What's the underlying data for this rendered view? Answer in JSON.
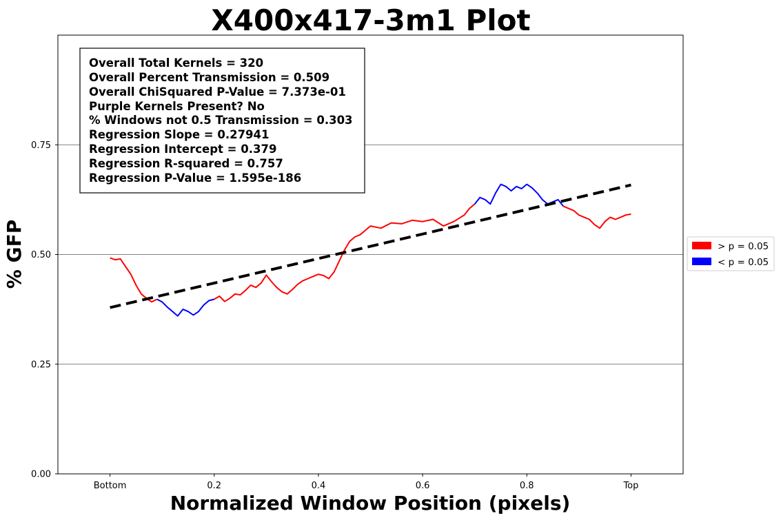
{
  "chart_data": {
    "type": "line",
    "title": "X400x417-3m1 Plot",
    "xlabel": "Normalized Window Position (pixels)",
    "ylabel": "% GFP",
    "xlim": [
      -0.1,
      1.1
    ],
    "ylim": [
      0,
      1.0
    ],
    "x_ticks": [
      {
        "value": 0.0,
        "label": "Bottom"
      },
      {
        "value": 0.2,
        "label": "0.2"
      },
      {
        "value": 0.4,
        "label": "0.4"
      },
      {
        "value": 0.6,
        "label": "0.6"
      },
      {
        "value": 0.8,
        "label": "0.8"
      },
      {
        "value": 1.0,
        "label": "Top"
      }
    ],
    "y_ticks": [
      {
        "value": 0.0,
        "label": "0.00"
      },
      {
        "value": 0.25,
        "label": "0.25"
      },
      {
        "value": 0.5,
        "label": "0.50"
      },
      {
        "value": 0.75,
        "label": "0.75"
      }
    ],
    "grid": "horizontal",
    "legend_placement": "outside-right",
    "legend": [
      {
        "label": "> p = 0.05",
        "color": "#ff0000"
      },
      {
        "label": "< p = 0.05",
        "color": "#0000ff"
      }
    ],
    "series": [
      {
        "color": "#ff0000",
        "points": [
          [
            0.0,
            0.492
          ],
          [
            0.01,
            0.488
          ],
          [
            0.02,
            0.49
          ],
          [
            0.03,
            0.472
          ],
          [
            0.04,
            0.455
          ],
          [
            0.05,
            0.43
          ],
          [
            0.06,
            0.41
          ],
          [
            0.07,
            0.4
          ],
          [
            0.08,
            0.392
          ],
          [
            0.09,
            0.398
          ]
        ]
      },
      {
        "color": "#0000ff",
        "points": [
          [
            0.09,
            0.398
          ],
          [
            0.1,
            0.392
          ],
          [
            0.11,
            0.38
          ],
          [
            0.12,
            0.37
          ],
          [
            0.13,
            0.36
          ],
          [
            0.14,
            0.375
          ],
          [
            0.15,
            0.37
          ],
          [
            0.16,
            0.362
          ],
          [
            0.17,
            0.37
          ],
          [
            0.18,
            0.385
          ],
          [
            0.19,
            0.395
          ],
          [
            0.2,
            0.398
          ]
        ]
      },
      {
        "color": "#ff0000",
        "points": [
          [
            0.2,
            0.398
          ],
          [
            0.21,
            0.405
          ],
          [
            0.22,
            0.393
          ],
          [
            0.23,
            0.4
          ],
          [
            0.24,
            0.41
          ],
          [
            0.25,
            0.408
          ],
          [
            0.26,
            0.418
          ],
          [
            0.27,
            0.43
          ],
          [
            0.28,
            0.425
          ],
          [
            0.29,
            0.435
          ],
          [
            0.3,
            0.453
          ],
          [
            0.31,
            0.438
          ],
          [
            0.32,
            0.425
          ],
          [
            0.33,
            0.415
          ],
          [
            0.34,
            0.41
          ],
          [
            0.35,
            0.42
          ],
          [
            0.36,
            0.432
          ],
          [
            0.37,
            0.44
          ],
          [
            0.38,
            0.445
          ],
          [
            0.39,
            0.45
          ],
          [
            0.4,
            0.455
          ],
          [
            0.41,
            0.452
          ],
          [
            0.42,
            0.445
          ],
          [
            0.43,
            0.46
          ],
          [
            0.44,
            0.485
          ],
          [
            0.45,
            0.51
          ],
          [
            0.46,
            0.53
          ],
          [
            0.47,
            0.54
          ],
          [
            0.48,
            0.545
          ],
          [
            0.49,
            0.555
          ],
          [
            0.5,
            0.565
          ],
          [
            0.52,
            0.56
          ],
          [
            0.54,
            0.572
          ],
          [
            0.56,
            0.57
          ],
          [
            0.58,
            0.578
          ],
          [
            0.6,
            0.575
          ],
          [
            0.62,
            0.58
          ],
          [
            0.64,
            0.565
          ],
          [
            0.66,
            0.575
          ],
          [
            0.68,
            0.59
          ],
          [
            0.69,
            0.605
          ],
          [
            0.7,
            0.615
          ]
        ]
      },
      {
        "color": "#0000ff",
        "points": [
          [
            0.7,
            0.615
          ],
          [
            0.71,
            0.63
          ],
          [
            0.72,
            0.625
          ],
          [
            0.73,
            0.615
          ],
          [
            0.74,
            0.64
          ],
          [
            0.75,
            0.66
          ],
          [
            0.76,
            0.655
          ],
          [
            0.77,
            0.645
          ],
          [
            0.78,
            0.655
          ],
          [
            0.79,
            0.65
          ],
          [
            0.8,
            0.66
          ],
          [
            0.81,
            0.652
          ],
          [
            0.82,
            0.64
          ],
          [
            0.83,
            0.625
          ],
          [
            0.84,
            0.615
          ],
          [
            0.85,
            0.62
          ],
          [
            0.86,
            0.625
          ],
          [
            0.87,
            0.61
          ]
        ]
      },
      {
        "color": "#ff0000",
        "points": [
          [
            0.87,
            0.61
          ],
          [
            0.88,
            0.605
          ],
          [
            0.89,
            0.6
          ],
          [
            0.9,
            0.59
          ],
          [
            0.91,
            0.585
          ],
          [
            0.92,
            0.58
          ],
          [
            0.93,
            0.568
          ],
          [
            0.94,
            0.56
          ],
          [
            0.95,
            0.575
          ],
          [
            0.96,
            0.585
          ],
          [
            0.97,
            0.58
          ],
          [
            0.98,
            0.585
          ],
          [
            0.99,
            0.59
          ],
          [
            1.0,
            0.592
          ]
        ]
      }
    ],
    "regression_line": {
      "slope": 0.27941,
      "intercept": 0.379,
      "x_range": [
        0.0,
        1.0
      ],
      "style": "dashed",
      "color": "#000000"
    },
    "stats_box": [
      "Overall Total Kernels = 320",
      "Overall Percent Transmission = 0.509",
      "Overall ChiSquared P-Value = 7.373e-01",
      "Purple Kernels Present? No",
      "% Windows not 0.5 Transmission = 0.303",
      "Regression Slope = 0.27941",
      "Regression Intercept = 0.379",
      "Regression R-squared = 0.757",
      "Regression P-Value = 1.595e-186"
    ]
  }
}
